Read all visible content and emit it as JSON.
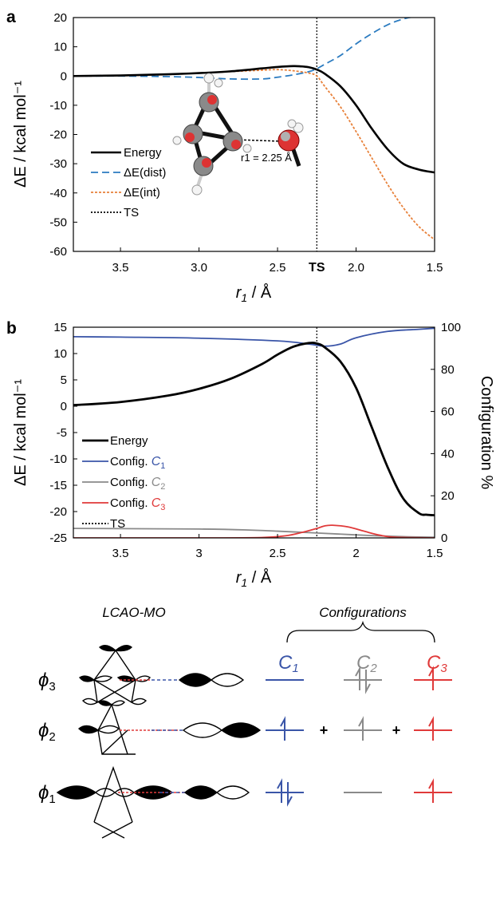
{
  "colors": {
    "energy": "#000000",
    "dist": "#2b7bc0",
    "int": "#e8813a",
    "c1": "#3a55a8",
    "c2": "#8a8a8a",
    "c3": "#e03a3a",
    "ts": "#000000"
  },
  "chart_data": [
    {
      "panel": "a",
      "type": "line",
      "xlabel": "r1 / Å",
      "ylabel": "ΔE / kcal mol⁻¹",
      "xlim": [
        3.8,
        1.5
      ],
      "ylim": [
        -60,
        20
      ],
      "x_reversed": true,
      "xticks": [
        3.5,
        3.0,
        2.5,
        2.0,
        1.5
      ],
      "xtick_labels": [
        "3.5",
        "3.0",
        "2.5",
        "2.0",
        "1.5"
      ],
      "yticks": [
        20,
        10,
        0,
        -10,
        -20,
        -30,
        -40,
        -50,
        -60
      ],
      "ts_x": 2.25,
      "ts_label": "TS",
      "legend": [
        "Energy",
        "ΔE(dist)",
        "ΔE(int)",
        "TS"
      ],
      "inset_label": "r1 = 2.25 Å",
      "series": [
        {
          "name": "Energy",
          "style": "solid",
          "color_key": "energy",
          "x": [
            3.8,
            3.5,
            3.2,
            3.0,
            2.8,
            2.6,
            2.5,
            2.4,
            2.35,
            2.3,
            2.25,
            2.2,
            2.1,
            2.0,
            1.9,
            1.8,
            1.7,
            1.6,
            1.5
          ],
          "y": [
            0,
            0.2,
            0.6,
            1.0,
            1.6,
            2.6,
            3.1,
            3.4,
            3.3,
            3.0,
            2.2,
            0.8,
            -3.5,
            -10,
            -18,
            -25,
            -30,
            -32,
            -33
          ]
        },
        {
          "name": "ΔE(dist)",
          "style": "dash",
          "color_key": "dist",
          "x": [
            3.8,
            3.5,
            3.2,
            3.0,
            2.8,
            2.6,
            2.5,
            2.4,
            2.3,
            2.25,
            2.2,
            2.1,
            2.0,
            1.9,
            1.8,
            1.7,
            1.6,
            1.5
          ],
          "y": [
            0,
            0,
            -0.2,
            -0.5,
            -1.0,
            -1.0,
            -0.4,
            0.4,
            1.5,
            2.5,
            4.0,
            7.0,
            11.0,
            14.5,
            17.5,
            19.5,
            20.5,
            21
          ]
        },
        {
          "name": "ΔE(int)",
          "style": "dot",
          "color_key": "int",
          "x": [
            3.8,
            3.5,
            3.2,
            3.0,
            2.8,
            2.6,
            2.5,
            2.4,
            2.3,
            2.25,
            2.2,
            2.1,
            2.0,
            1.9,
            1.8,
            1.7,
            1.6,
            1.5
          ],
          "y": [
            0,
            0.1,
            0.5,
            1.0,
            1.5,
            2.0,
            2.2,
            1.8,
            1.0,
            0,
            -3.5,
            -10.5,
            -19.0,
            -28.0,
            -37.0,
            -45.0,
            -51.5,
            -56
          ]
        }
      ]
    },
    {
      "panel": "b",
      "type": "line",
      "xlabel": "r1 / Å",
      "ylabel": "ΔE / kcal mol⁻¹",
      "ylabel_right": "Configuration %",
      "xlim": [
        3.8,
        1.5
      ],
      "ylim": [
        -25,
        15
      ],
      "ylim_right": [
        0,
        100
      ],
      "x_reversed": true,
      "xticks": [
        3.5,
        3.0,
        2.5,
        2.0,
        1.5
      ],
      "xtick_labels": [
        "3.5",
        "3",
        "2.5",
        "2",
        "1.5"
      ],
      "yticks": [
        15,
        10,
        5,
        0,
        -5,
        -10,
        -15,
        -20,
        -25
      ],
      "yticks_right": [
        100,
        80,
        60,
        40,
        20,
        0
      ],
      "ts_x": 2.25,
      "legend": [
        "Energy",
        "Config. C1",
        "Config. C2",
        "Config. C3",
        "TS"
      ],
      "series": [
        {
          "name": "Energy",
          "axis": "left",
          "color_key": "energy",
          "x": [
            3.8,
            3.5,
            3.2,
            3.0,
            2.8,
            2.6,
            2.5,
            2.4,
            2.3,
            2.25,
            2.2,
            2.1,
            2.0,
            1.9,
            1.8,
            1.7,
            1.6,
            1.55,
            1.5
          ],
          "y": [
            0.2,
            0.8,
            2.0,
            3.3,
            5.2,
            8.0,
            9.8,
            11.3,
            12.0,
            11.9,
            11.2,
            8.5,
            3.5,
            -4.0,
            -11.5,
            -17.5,
            -20.3,
            -20.6,
            -20.7
          ]
        },
        {
          "name": "Config. C1",
          "axis": "right",
          "color_key": "c1",
          "x": [
            3.8,
            3.5,
            3.0,
            2.5,
            2.3,
            2.2,
            2.1,
            2.0,
            1.8,
            1.6,
            1.5
          ],
          "y": [
            95.5,
            95.3,
            94.8,
            93.5,
            92.0,
            91.0,
            92.0,
            95.0,
            98.0,
            99.0,
            99.5
          ]
        },
        {
          "name": "Config. C2",
          "axis": "right",
          "color_key": "c2",
          "x": [
            3.8,
            3.5,
            3.0,
            2.7,
            2.5,
            2.3,
            2.1,
            1.9,
            1.7,
            1.5
          ],
          "y": [
            4.5,
            4.4,
            4.2,
            3.8,
            3.2,
            2.5,
            1.8,
            1.1,
            0.6,
            0.3
          ]
        },
        {
          "name": "Config. C3",
          "axis": "right",
          "color_key": "c3",
          "x": [
            3.8,
            3.0,
            2.6,
            2.45,
            2.35,
            2.25,
            2.2,
            2.15,
            2.05,
            1.95,
            1.85,
            1.75,
            1.5
          ],
          "y": [
            0,
            0,
            0.2,
            1.0,
            2.5,
            4.5,
            5.7,
            6.0,
            5.2,
            3.2,
            1.3,
            0.3,
            0
          ]
        }
      ]
    }
  ],
  "panel_labels": {
    "a": "a",
    "b": "b"
  },
  "mo_diagram": {
    "header_left": "LCAO-MO",
    "header_right": "Configurations",
    "configs": [
      {
        "label": "C",
        "sub": "1",
        "color_key": "c1"
      },
      {
        "label": "C",
        "sub": "2",
        "color_key": "c2"
      },
      {
        "label": "C",
        "sub": "3",
        "color_key": "c3"
      }
    ],
    "orbitals": [
      {
        "label": "ϕ",
        "sub": "3",
        "occupancy": [
          0,
          2,
          1
        ]
      },
      {
        "label": "ϕ",
        "sub": "2",
        "occupancy": [
          1,
          1,
          1
        ],
        "plus": "+"
      },
      {
        "label": "ϕ",
        "sub": "1",
        "occupancy": [
          2,
          0,
          1
        ]
      }
    ]
  }
}
